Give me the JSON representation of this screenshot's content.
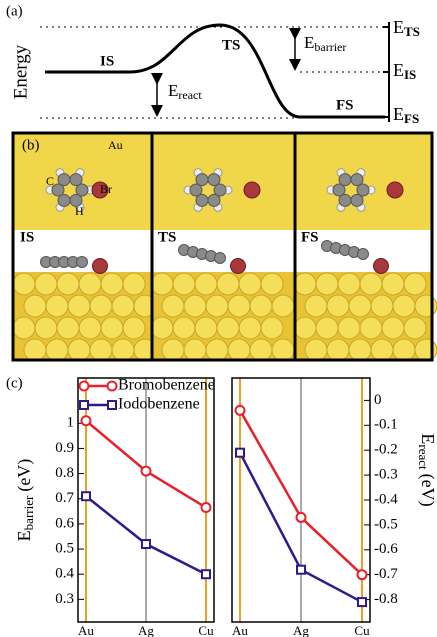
{
  "panel_a": {
    "label": "(a)",
    "ylabel": "Energy",
    "states": [
      "IS",
      "TS",
      "FS"
    ],
    "levels": [
      {
        "symbol": "E",
        "sub": "TS"
      },
      {
        "symbol": "E",
        "sub": "IS"
      },
      {
        "symbol": "E",
        "sub": "FS"
      }
    ],
    "barrier": {
      "symbol": "E",
      "sub": "barrier"
    },
    "react": {
      "symbol": "E",
      "sub": "react"
    }
  },
  "panel_b": {
    "label": "(b)",
    "metal": "Au",
    "atoms": [
      "C",
      "Br",
      "H"
    ],
    "states": [
      "IS",
      "TS",
      "FS"
    ]
  },
  "panel_c": {
    "label": "(c)"
  },
  "chart_data": [
    {
      "type": "line",
      "categories": [
        "Au",
        "Ag",
        "Cu"
      ],
      "ylabel": {
        "symbol": "E",
        "sub": "barrier",
        "unit": "(eV)"
      },
      "ylim": [
        0.21,
        1.18
      ],
      "yticks": [
        0.3,
        0.4,
        0.5,
        0.6,
        0.7,
        0.8,
        0.9,
        1
      ],
      "legend": "upper left",
      "series": [
        {
          "name": "Bromobenzene",
          "color": "#e8202a",
          "marker": "circle",
          "values": [
            1.01,
            0.81,
            0.665
          ]
        },
        {
          "name": "Iodobenzene",
          "color": "#2e1a8c",
          "marker": "square",
          "values": [
            0.71,
            0.52,
            0.4
          ]
        }
      ]
    },
    {
      "type": "line",
      "categories": [
        "Au",
        "Ag",
        "Cu"
      ],
      "ylabel": {
        "symbol": "E",
        "sub": "react",
        "unit": "(eV)"
      },
      "ylim": [
        -0.89,
        0.09
      ],
      "yticks": [
        0,
        -0.1,
        -0.2,
        -0.3,
        -0.4,
        -0.5,
        -0.6,
        -0.7,
        -0.8
      ],
      "series": [
        {
          "color": "#e8202a",
          "marker": "circle",
          "values": [
            -0.04,
            -0.47,
            -0.7
          ]
        },
        {
          "color": "#2e1a8c",
          "marker": "square",
          "values": [
            -0.21,
            -0.68,
            -0.81
          ]
        }
      ]
    }
  ]
}
